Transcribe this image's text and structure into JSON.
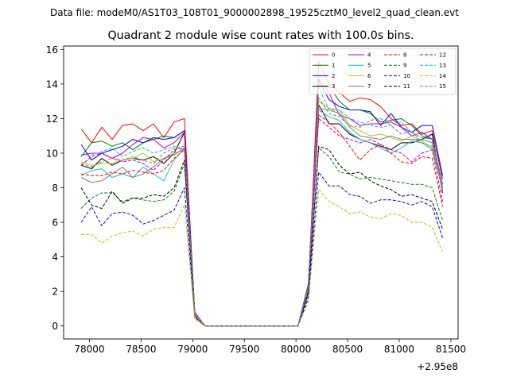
{
  "figure": {
    "suptitle": "Data file: modeM0/AS1T03_108T01_9000002898_19525cztM0_level2_quad_clean.evt"
  },
  "chart_data": {
    "type": "line",
    "title": "Quadrant 2 module wise count rates with 100.0s bins.",
    "xlabel": "",
    "ylabel": "",
    "x_offset_label": "+2.95e8",
    "x_offset": 295000000,
    "xlim": [
      77750,
      81570
    ],
    "ylim": [
      -0.75,
      16.2
    ],
    "x_ticks": [
      78000,
      78500,
      79000,
      79500,
      80000,
      80500,
      81000,
      81500
    ],
    "x_tick_labels": [
      "78000",
      "78500",
      "79000",
      "79500",
      "80000",
      "80500",
      "81000",
      "81500"
    ],
    "y_ticks": [
      0,
      2,
      4,
      6,
      8,
      10,
      12,
      14,
      16
    ],
    "y_tick_labels": [
      "0",
      "2",
      "4",
      "6",
      "8",
      "10",
      "12",
      "14",
      "16"
    ],
    "grid": false,
    "legend_position": "top-right",
    "legend_columns": 4,
    "x": [
      77920,
      78020,
      78120,
      78220,
      78320,
      78420,
      78520,
      78620,
      78720,
      78820,
      78920,
      79020,
      79120,
      79220,
      79320,
      79420,
      79520,
      79620,
      79720,
      79820,
      79920,
      80020,
      80120,
      80220,
      80320,
      80420,
      80520,
      80620,
      80720,
      80820,
      80920,
      81020,
      81120,
      81220,
      81320,
      81420
    ],
    "series": [
      {
        "name": "0",
        "color": "#ff0000",
        "dash": "solid",
        "values": [
          11.4,
          10.6,
          11.5,
          10.8,
          11.6,
          11.7,
          11.3,
          11.7,
          10.9,
          11.8,
          12.0,
          0.8,
          0.0,
          0.0,
          0.0,
          0.0,
          0.0,
          0.0,
          0.0,
          0.0,
          0.0,
          0.0,
          2.0,
          15.3,
          14.0,
          13.5,
          13.0,
          13.2,
          13.1,
          12.7,
          12.0,
          11.6,
          11.7,
          11.1,
          11.3,
          8.5
        ]
      },
      {
        "name": "1",
        "color": "#008000",
        "dash": "solid",
        "values": [
          9.8,
          10.6,
          10.7,
          10.4,
          10.6,
          10.2,
          10.6,
          10.8,
          11.0,
          10.9,
          11.3,
          0.7,
          0.0,
          0.0,
          0.0,
          0.0,
          0.0,
          0.0,
          0.0,
          0.0,
          0.0,
          0.0,
          2.3,
          13.9,
          13.9,
          13.0,
          12.5,
          12.5,
          12.3,
          11.8,
          11.9,
          12.0,
          11.6,
          11.0,
          10.8,
          8.0
        ]
      },
      {
        "name": "2",
        "color": "#0000ff",
        "dash": "solid",
        "values": [
          10.5,
          9.6,
          10.0,
          10.2,
          10.4,
          10.8,
          10.6,
          10.9,
          10.8,
          10.9,
          11.3,
          0.7,
          0.0,
          0.0,
          0.0,
          0.0,
          0.0,
          0.0,
          0.0,
          0.0,
          0.0,
          0.0,
          2.4,
          14.2,
          13.1,
          12.7,
          12.5,
          12.5,
          12.4,
          11.6,
          12.3,
          11.5,
          11.2,
          11.6,
          11.6,
          8.7
        ]
      },
      {
        "name": "3",
        "color": "#000000",
        "dash": "solid",
        "values": [
          9.3,
          9.1,
          9.7,
          9.3,
          9.6,
          9.7,
          9.6,
          9.8,
          9.4,
          10.0,
          11.2,
          0.7,
          0.0,
          0.0,
          0.0,
          0.0,
          0.0,
          0.0,
          0.0,
          0.0,
          0.0,
          0.0,
          2.4,
          12.8,
          11.7,
          11.7,
          11.1,
          10.8,
          10.6,
          10.4,
          10.2,
          10.6,
          10.6,
          10.8,
          11.1,
          7.7
        ]
      },
      {
        "name": "4",
        "color": "#bf00bf",
        "dash": "solid",
        "values": [
          9.9,
          10.0,
          10.0,
          9.7,
          10.0,
          10.5,
          10.9,
          10.8,
          10.3,
          10.6,
          11.2,
          0.7,
          0.0,
          0.0,
          0.0,
          0.0,
          0.0,
          0.0,
          0.0,
          0.0,
          0.0,
          0.0,
          2.2,
          14.3,
          13.5,
          12.2,
          12.0,
          11.6,
          11.7,
          11.7,
          11.8,
          11.5,
          11.0,
          11.2,
          10.8,
          8.2
        ]
      },
      {
        "name": "5",
        "color": "#17becf",
        "dash": "solid",
        "values": [
          8.7,
          9.0,
          9.1,
          8.6,
          8.8,
          8.6,
          9.2,
          8.8,
          8.4,
          9.6,
          10.3,
          0.7,
          0.0,
          0.0,
          0.0,
          0.0,
          0.0,
          0.0,
          0.0,
          0.0,
          0.0,
          0.0,
          2.3,
          12.5,
          12.1,
          11.9,
          11.2,
          10.8,
          10.6,
          10.3,
          10.0,
          10.3,
          10.7,
          10.6,
          10.2,
          7.9
        ]
      },
      {
        "name": "6",
        "color": "#bcbd22",
        "dash": "solid",
        "values": [
          9.5,
          9.3,
          9.4,
          9.4,
          9.6,
          9.7,
          10.0,
          9.5,
          9.7,
          10.0,
          10.2,
          0.7,
          0.0,
          0.0,
          0.0,
          0.0,
          0.0,
          0.0,
          0.0,
          0.0,
          0.0,
          0.0,
          2.2,
          13.0,
          12.6,
          12.5,
          11.6,
          11.3,
          11.0,
          11.1,
          10.9,
          10.7,
          11.0,
          10.7,
          10.3,
          7.9
        ]
      },
      {
        "name": "7",
        "color": "#7f7f7f",
        "dash": "solid",
        "values": [
          8.6,
          8.3,
          8.4,
          8.8,
          9.2,
          8.6,
          8.8,
          9.2,
          9.7,
          9.9,
          10.3,
          0.7,
          0.0,
          0.0,
          0.0,
          0.0,
          0.0,
          0.0,
          0.0,
          0.0,
          0.0,
          0.0,
          2.2,
          12.6,
          12.5,
          12.3,
          11.5,
          11.0,
          10.9,
          10.8,
          11.0,
          10.8,
          10.8,
          10.8,
          10.6,
          8.0
        ]
      },
      {
        "name": "8",
        "color": "#ff0000",
        "dash": "dashed",
        "values": [
          8.8,
          8.7,
          8.7,
          8.9,
          8.8,
          9.0,
          8.9,
          8.8,
          9.0,
          9.7,
          10.2,
          0.6,
          0.0,
          0.0,
          0.0,
          0.0,
          0.0,
          0.0,
          0.0,
          0.0,
          0.0,
          0.0,
          2.0,
          12.2,
          11.8,
          11.2,
          10.4,
          9.6,
          10.2,
          10.5,
          10.0,
          9.5,
          9.4,
          9.8,
          9.7,
          6.9
        ]
      },
      {
        "name": "9",
        "color": "#008000",
        "dash": "dashed",
        "values": [
          6.8,
          7.4,
          7.7,
          7.7,
          7.2,
          7.4,
          7.3,
          7.2,
          7.3,
          7.8,
          9.4,
          0.5,
          0.0,
          0.0,
          0.0,
          0.0,
          0.0,
          0.0,
          0.0,
          0.0,
          0.0,
          0.0,
          1.8,
          10.3,
          9.8,
          8.9,
          8.8,
          8.5,
          8.6,
          8.5,
          8.4,
          8.3,
          8.2,
          8.2,
          8.0,
          6.1
        ]
      },
      {
        "name": "10",
        "color": "#0000ff",
        "dash": "dashed",
        "values": [
          6.0,
          6.9,
          5.8,
          6.5,
          6.6,
          6.4,
          5.9,
          6.1,
          6.4,
          6.7,
          8.0,
          0.5,
          0.0,
          0.0,
          0.0,
          0.0,
          0.0,
          0.0,
          0.0,
          0.0,
          0.0,
          0.0,
          1.6,
          8.9,
          8.1,
          8.1,
          7.6,
          7.5,
          7.1,
          7.3,
          7.3,
          7.2,
          7.0,
          7.2,
          6.9,
          5.1
        ]
      },
      {
        "name": "11",
        "color": "#000000",
        "dash": "dashed",
        "values": [
          8.0,
          7.0,
          6.8,
          7.8,
          7.1,
          7.4,
          7.4,
          7.6,
          7.5,
          8.0,
          9.6,
          0.6,
          0.0,
          0.0,
          0.0,
          0.0,
          0.0,
          0.0,
          0.0,
          0.0,
          0.0,
          0.0,
          1.9,
          10.4,
          10.2,
          9.3,
          8.8,
          8.9,
          8.4,
          8.1,
          7.9,
          7.5,
          7.6,
          7.4,
          7.2,
          5.6
        ]
      },
      {
        "name": "12",
        "color": "#bf00bf",
        "dash": "dashed",
        "values": [
          9.3,
          9.8,
          10.0,
          9.7,
          9.5,
          9.6,
          9.4,
          9.0,
          9.6,
          10.2,
          10.3,
          0.6,
          0.0,
          0.0,
          0.0,
          0.0,
          0.0,
          0.0,
          0.0,
          0.0,
          0.0,
          0.0,
          2.1,
          12.0,
          11.5,
          11.0,
          10.8,
          10.6,
          10.8,
          10.5,
          10.2,
          10.0,
          9.5,
          10.0,
          10.2,
          7.2
        ]
      },
      {
        "name": "13",
        "color": "#17becf",
        "dash": "dashed",
        "values": [
          9.9,
          9.9,
          10.1,
          10.3,
          9.8,
          10.1,
          10.3,
          10.0,
          10.2,
          10.4,
          10.2,
          0.7,
          0.0,
          0.0,
          0.0,
          0.0,
          0.0,
          0.0,
          0.0,
          0.0,
          0.0,
          0.0,
          2.2,
          13.8,
          12.5,
          12.5,
          12.0,
          11.8,
          11.6,
          11.5,
          11.6,
          11.8,
          11.2,
          10.9,
          10.8,
          8.2
        ]
      },
      {
        "name": "14",
        "color": "#bcbd22",
        "dash": "dashed",
        "values": [
          5.3,
          5.3,
          4.8,
          5.2,
          5.4,
          5.5,
          5.2,
          5.6,
          5.7,
          5.7,
          7.0,
          0.4,
          0.0,
          0.0,
          0.0,
          0.0,
          0.0,
          0.0,
          0.0,
          0.0,
          0.0,
          0.0,
          1.4,
          7.9,
          7.2,
          6.9,
          6.5,
          6.6,
          6.3,
          6.2,
          6.5,
          6.4,
          6.0,
          6.0,
          5.7,
          4.3
        ]
      },
      {
        "name": "15",
        "color": "#7f7f7f",
        "dash": "dashed",
        "values": [
          9.4,
          9.2,
          9.5,
          9.7,
          9.6,
          9.8,
          9.6,
          9.4,
          10.0,
          10.3,
          10.4,
          0.6,
          0.0,
          0.0,
          0.0,
          0.0,
          0.0,
          0.0,
          0.0,
          0.0,
          0.0,
          0.0,
          2.2,
          13.2,
          12.3,
          12.1,
          11.6,
          11.5,
          11.9,
          12.0,
          11.6,
          11.1,
          11.3,
          10.6,
          10.4,
          7.8
        ]
      }
    ]
  }
}
